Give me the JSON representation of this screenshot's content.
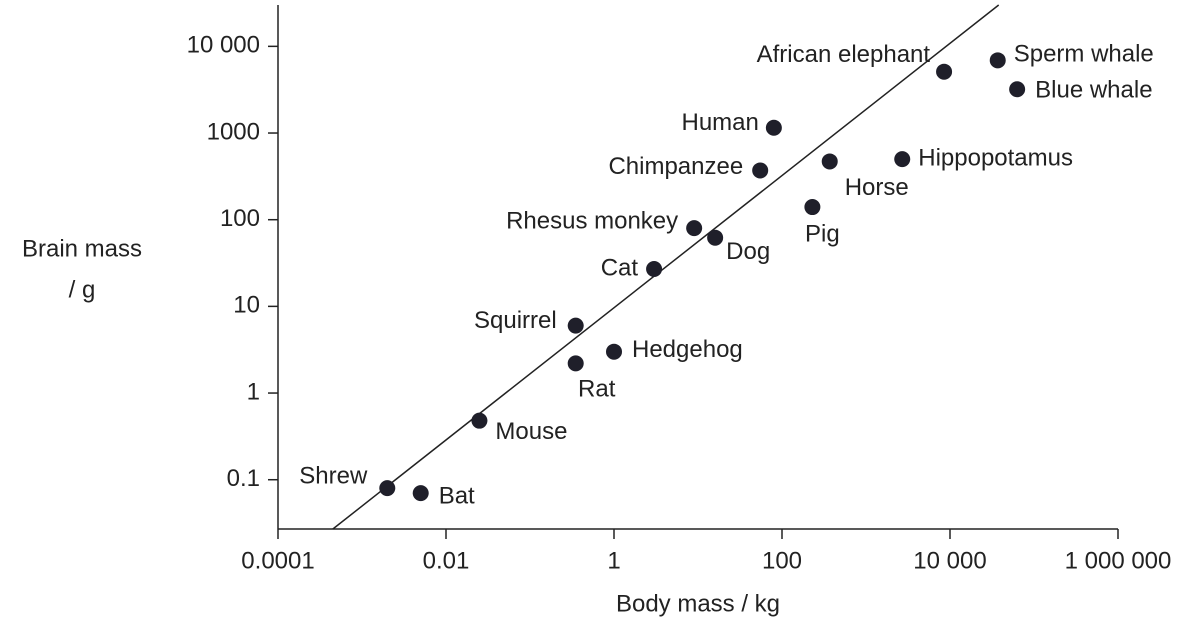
{
  "chart_data": {
    "type": "scatter",
    "xlabel": "Body mass / kg",
    "ylabel": [
      "Brain mass",
      "/ g"
    ],
    "log_x": true,
    "log_y": true,
    "color": "#1f1f2a",
    "xlim": [
      0.0001,
      1000000
    ],
    "xticks": [
      0.0001,
      0.01,
      1,
      100,
      {
        "value": 10000,
        "label": "10 000"
      },
      {
        "value": 1000000,
        "label": "1 000 000"
      }
    ],
    "ylim": [
      0.027,
      30000
    ],
    "yticks": [
      0.1,
      1,
      10,
      100,
      1000,
      {
        "value": 10000,
        "label": "10 000"
      }
    ],
    "points": [
      {
        "name": "Shrew",
        "x": 0.002,
        "y": 0.08
      },
      {
        "name": "Bat",
        "x": 0.005,
        "y": 0.07
      },
      {
        "name": "Mouse",
        "x": 0.025,
        "y": 0.48
      },
      {
        "name": "Rat",
        "x": 0.35,
        "y": 2.2
      },
      {
        "name": "Squirrel",
        "x": 0.35,
        "y": 6
      },
      {
        "name": "Hedgehog",
        "x": 1,
        "y": 3
      },
      {
        "name": "Cat",
        "x": 3,
        "y": 27
      },
      {
        "name": "Rhesus monkey",
        "x": 9,
        "y": 80
      },
      {
        "name": "Dog",
        "x": 16,
        "y": 62
      },
      {
        "name": "Chimpanzee",
        "x": 55,
        "y": 370
      },
      {
        "name": "Human",
        "x": 80,
        "y": 1150
      },
      {
        "name": "Pig",
        "x": 230,
        "y": 140
      },
      {
        "name": "Horse",
        "x": 370,
        "y": 470
      },
      {
        "name": "Hippopotamus",
        "x": 2700,
        "y": 500
      },
      {
        "name": "African elephant",
        "x": 8500,
        "y": 5100
      },
      {
        "name": "Sperm whale",
        "x": 37000,
        "y": 6900
      },
      {
        "name": "Blue whale",
        "x": 63000,
        "y": 3200
      }
    ],
    "trend_line": {
      "x": [
        0.00045,
        38000
      ],
      "y": [
        0.027,
        30000
      ]
    }
  }
}
